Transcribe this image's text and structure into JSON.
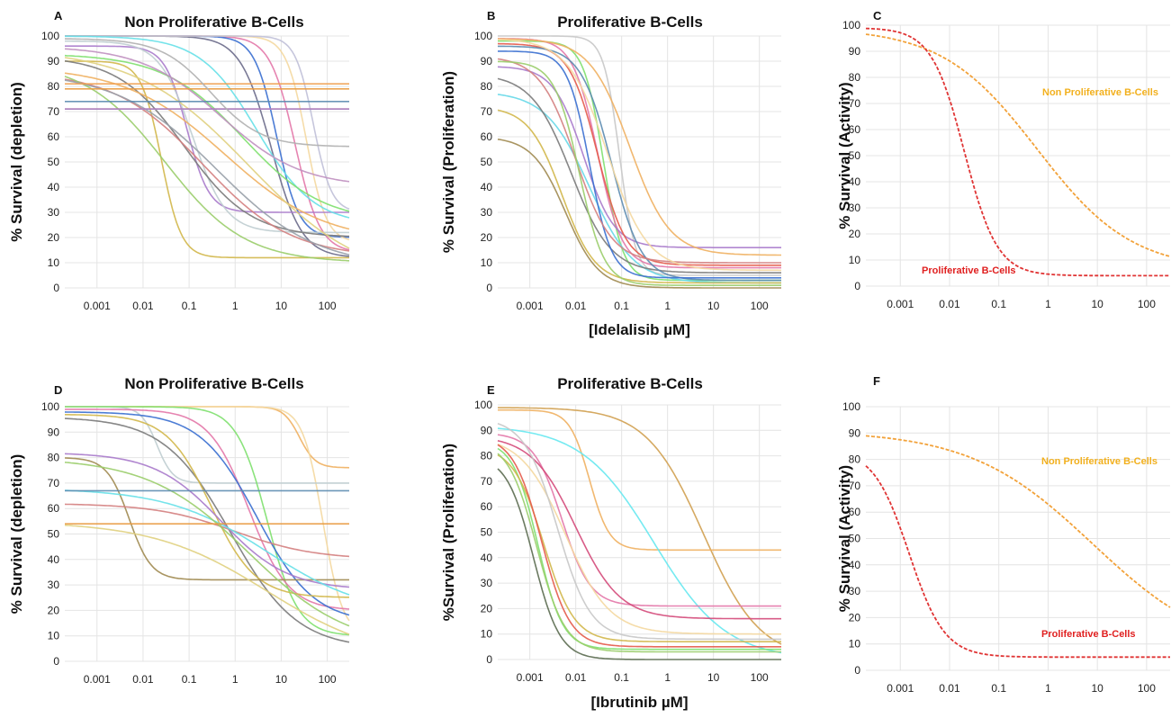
{
  "chart_data": [
    {
      "panel": "A",
      "type": "line",
      "title": "Non Proliferative B-Cells",
      "ylabel": "% Survival (depletion)",
      "xlabel": "",
      "xscale": "log",
      "xlim": [
        0.0002,
        300
      ],
      "ylim": [
        0,
        100
      ],
      "xticks": [
        "0.001",
        "0.01",
        "0.1",
        "1",
        "10",
        "100"
      ],
      "yticks": [
        "0",
        "10",
        "20",
        "30",
        "40",
        "50",
        "60",
        "70",
        "80",
        "90",
        "100"
      ],
      "grid": true,
      "series": [
        {
          "color": "#e377a8",
          "top": 100,
          "bottom": 14,
          "ic50": 20,
          "hill": 1.6
        },
        {
          "color": "#3a6fd0",
          "top": 100,
          "bottom": 20,
          "ic50": 8,
          "hill": 1.8
        },
        {
          "color": "#6a6a8a",
          "top": 100,
          "bottom": 12,
          "ic50": 6,
          "hill": 1.3
        },
        {
          "color": "#f4d8a0",
          "top": 100,
          "bottom": 18,
          "ic50": 35,
          "hill": 2.0
        },
        {
          "color": "#c0c0d8",
          "top": 100,
          "bottom": 30,
          "ic50": 50,
          "hill": 2.2
        },
        {
          "color": "#d2b74a",
          "top": 90,
          "bottom": 12,
          "ic50": 0.025,
          "hill": 2.0
        },
        {
          "color": "#a97acb",
          "top": 96,
          "bottom": 30,
          "ic50": 0.09,
          "hill": 1.8
        },
        {
          "color": "#bfcdd0",
          "top": 98,
          "bottom": 22,
          "ic50": 0.12,
          "hill": 1.2
        },
        {
          "color": "#7a7a7a",
          "top": 92,
          "bottom": 20,
          "ic50": 0.08,
          "hill": 0.6
        },
        {
          "color": "#66e0e8",
          "top": 100,
          "bottom": 25,
          "ic50": 3,
          "hill": 0.7
        },
        {
          "color": "#7ee06e",
          "top": 93,
          "bottom": 26,
          "ic50": 1.5,
          "hill": 0.5
        },
        {
          "color": "#f0b060",
          "top": 88,
          "bottom": 18,
          "ic50": 0.6,
          "hill": 0.4
        },
        {
          "color": "#d47f7f",
          "top": 86,
          "bottom": 12,
          "ic50": 0.2,
          "hill": 0.45
        },
        {
          "color": "#9acd6a",
          "top": 90,
          "bottom": 10,
          "ic50": 0.03,
          "hill": 0.5
        },
        {
          "color": "#e0d080",
          "top": 95,
          "bottom": 2,
          "ic50": 2,
          "hill": 0.35
        },
        {
          "color": "#98a0a8",
          "top": 86,
          "bottom": 8,
          "ic50": 0.4,
          "hill": 0.4
        },
        {
          "color": "#c090c0",
          "top": 96,
          "bottom": 40,
          "ic50": 0.5,
          "hill": 0.5
        },
        {
          "color": "#f0a050",
          "top": 81,
          "bottom": 81,
          "ic50": 1,
          "hill": 1
        },
        {
          "color": "#e89a40",
          "top": 79,
          "bottom": 79,
          "ic50": 1,
          "hill": 1
        },
        {
          "color": "#5b8bb0",
          "top": 74,
          "bottom": 74,
          "ic50": 1,
          "hill": 1
        },
        {
          "color": "#e0457a",
          "top": 71,
          "bottom": 71,
          "ic50": 1,
          "hill": 1
        },
        {
          "color": "#a58cc8",
          "top": 71,
          "bottom": 71,
          "ic50": 1,
          "hill": 1
        },
        {
          "color": "#b0b0b0",
          "top": 99,
          "bottom": 56,
          "ic50": 0.3,
          "hill": 0.8
        }
      ]
    },
    {
      "panel": "B",
      "type": "line",
      "title": "Proliferative B-Cells",
      "ylabel": "% Survival (Proliferation)",
      "xlabel": "[Idelalisib µM]",
      "xscale": "log",
      "xlim": [
        0.0002,
        300
      ],
      "ylim": [
        0,
        100
      ],
      "xticks": [
        "0.001",
        "0.01",
        "0.1",
        "1",
        "10",
        "100"
      ],
      "yticks": [
        "0",
        "10",
        "20",
        "30",
        "40",
        "50",
        "60",
        "70",
        "80",
        "90",
        "100"
      ],
      "grid": true,
      "series": [
        {
          "color": "#c8c8c8",
          "top": 100,
          "bottom": 5,
          "ic50": 0.09,
          "hill": 2.5
        },
        {
          "color": "#7ee06e",
          "top": 98,
          "bottom": 3,
          "ic50": 0.04,
          "hill": 2.0
        },
        {
          "color": "#e377a8",
          "top": 99,
          "bottom": 8,
          "ic50": 0.03,
          "hill": 1.6
        },
        {
          "color": "#66d8e8",
          "top": 78,
          "bottom": 2,
          "ic50": 0.02,
          "hill": 0.9
        },
        {
          "color": "#a97acb",
          "top": 88,
          "bottom": 16,
          "ic50": 0.015,
          "hill": 1.3
        },
        {
          "color": "#7a7a7a",
          "top": 85,
          "bottom": 6,
          "ic50": 0.008,
          "hill": 1.0
        },
        {
          "color": "#d2b74a",
          "top": 72,
          "bottom": 2,
          "ic50": 0.005,
          "hill": 1.2
        },
        {
          "color": "#a08a50",
          "top": 60,
          "bottom": 0,
          "ic50": 0.006,
          "hill": 1.2
        },
        {
          "color": "#f0b060",
          "top": 99,
          "bottom": 13,
          "ic50": 0.15,
          "hill": 1.0
        },
        {
          "color": "#e45a4a",
          "top": 97,
          "bottom": 9,
          "ic50": 0.03,
          "hill": 1.4
        },
        {
          "color": "#5b8bb0",
          "top": 96,
          "bottom": 3,
          "ic50": 0.06,
          "hill": 1.3
        },
        {
          "color": "#3a6fd0",
          "top": 94,
          "bottom": 4,
          "ic50": 0.02,
          "hill": 1.8
        },
        {
          "color": "#d47f7f",
          "top": 92,
          "bottom": 10,
          "ic50": 0.01,
          "hill": 1.1
        },
        {
          "color": "#9acd6a",
          "top": 90,
          "bottom": 1,
          "ic50": 0.012,
          "hill": 1.6
        },
        {
          "color": "#f4d8a0",
          "top": 99,
          "bottom": 7,
          "ic50": 0.05,
          "hill": 1.0
        }
      ]
    },
    {
      "panel": "C",
      "type": "line",
      "title": "",
      "ylabel": "% Survival (Activity)",
      "xlabel": "",
      "xscale": "log",
      "xlim": [
        0.0002,
        300
      ],
      "ylim": [
        0,
        100
      ],
      "xticks": [
        "0.001",
        "0.01",
        "0.1",
        "1",
        "10",
        "100"
      ],
      "yticks": [
        "0",
        "10",
        "20",
        "30",
        "40",
        "50",
        "60",
        "70",
        "80",
        "90",
        "100"
      ],
      "grid": true,
      "annotations": [
        {
          "text": "Non Proliferative B-Cells",
          "color": "#f2b01e"
        },
        {
          "text": "Proliferative B-Cells",
          "color": "#e02020"
        }
      ],
      "series": [
        {
          "name": "Non Proliferative B-Cells",
          "color": "#f2a23a",
          "dashed": true,
          "top": 99,
          "bottom": 6,
          "ic50": 0.6,
          "hill": 0.45
        },
        {
          "name": "Proliferative B-Cells",
          "color": "#e03535",
          "dashed": true,
          "top": 99,
          "bottom": 4,
          "ic50": 0.02,
          "hill": 1.3
        }
      ]
    },
    {
      "panel": "D",
      "type": "line",
      "title": "Non Proliferative B-Cells",
      "ylabel": "% Survival (depletion)",
      "xlabel": "",
      "xscale": "log",
      "xlim": [
        0.0002,
        300
      ],
      "ylim": [
        0,
        100
      ],
      "xticks": [
        "0.001",
        "0.01",
        "0.1",
        "1",
        "10",
        "100"
      ],
      "yticks": [
        "0",
        "10",
        "20",
        "30",
        "40",
        "50",
        "60",
        "70",
        "80",
        "90",
        "100"
      ],
      "grid": true,
      "series": [
        {
          "color": "#f0b060",
          "top": 100,
          "bottom": 76,
          "ic50": 25,
          "hill": 2.5
        },
        {
          "color": "#f4d8a0",
          "top": 100,
          "bottom": 10,
          "ic50": 80,
          "hill": 2.0
        },
        {
          "color": "#bfcdd0",
          "top": 100,
          "bottom": 70,
          "ic50": 0.02,
          "hill": 2.5
        },
        {
          "color": "#7ee06e",
          "top": 100,
          "bottom": 10,
          "ic50": 5,
          "hill": 1.3
        },
        {
          "color": "#e377a8",
          "top": 99,
          "bottom": 20,
          "ic50": 2,
          "hill": 1.0
        },
        {
          "color": "#3a6fd0",
          "top": 98,
          "bottom": 15,
          "ic50": 3,
          "hill": 0.7
        },
        {
          "color": "#7a7a7a",
          "top": 96,
          "bottom": 5,
          "ic50": 0.8,
          "hill": 0.6
        },
        {
          "color": "#d2b74a",
          "top": 97,
          "bottom": 25,
          "ic50": 0.3,
          "hill": 0.9
        },
        {
          "color": "#a08a50",
          "top": 80,
          "bottom": 32,
          "ic50": 0.005,
          "hill": 1.8
        },
        {
          "color": "#a97acb",
          "top": 82,
          "bottom": 28,
          "ic50": 0.5,
          "hill": 0.6
        },
        {
          "color": "#d47f7f",
          "top": 62,
          "bottom": 40,
          "ic50": 1,
          "hill": 0.5
        },
        {
          "color": "#66e0e8",
          "top": 68,
          "bottom": 18,
          "ic50": 5,
          "hill": 0.4
        },
        {
          "color": "#9acd6a",
          "top": 80,
          "bottom": 5,
          "ic50": 2,
          "hill": 0.4
        },
        {
          "color": "#e0d080",
          "top": 55,
          "bottom": 0,
          "ic50": 5,
          "hill": 0.35
        },
        {
          "color": "#5b8bb0",
          "top": 67,
          "bottom": 67,
          "ic50": 1,
          "hill": 1
        },
        {
          "color": "#e89a40",
          "top": 54,
          "bottom": 54,
          "ic50": 1,
          "hill": 1
        }
      ]
    },
    {
      "panel": "E",
      "type": "line",
      "title": "Proliferative B-Cells",
      "ylabel": "%Survival (Proliferation)",
      "xlabel": "[Ibrutinib µM]",
      "xscale": "log",
      "xlim": [
        0.0002,
        300
      ],
      "ylim": [
        0,
        100
      ],
      "xticks": [
        "0.001",
        "0.01",
        "0.1",
        "1",
        "10",
        "100"
      ],
      "yticks": [
        "0",
        "10",
        "20",
        "30",
        "40",
        "50",
        "60",
        "70",
        "80",
        "90",
        "100"
      ],
      "grid": true,
      "series": [
        {
          "color": "#d0a050",
          "top": 99,
          "bottom": 0,
          "ic50": 6,
          "hill": 0.7
        },
        {
          "color": "#f0b060",
          "top": 98,
          "bottom": 43,
          "ic50": 0.02,
          "hill": 2.0
        },
        {
          "color": "#66e8f0",
          "top": 92,
          "bottom": 0,
          "ic50": 0.5,
          "hill": 0.55
        },
        {
          "color": "#e377a8",
          "top": 89,
          "bottom": 21,
          "ic50": 0.005,
          "hill": 1.4
        },
        {
          "color": "#d44a7a",
          "top": 88,
          "bottom": 16,
          "ic50": 0.01,
          "hill": 0.9
        },
        {
          "color": "#f4d8a0",
          "top": 88,
          "bottom": 10,
          "ic50": 0.006,
          "hill": 0.9
        },
        {
          "color": "#7ee06e",
          "top": 86,
          "bottom": 4,
          "ic50": 0.0015,
          "hill": 1.6
        },
        {
          "color": "#d2b74a",
          "top": 84,
          "bottom": 7,
          "ic50": 0.002,
          "hill": 1.3
        },
        {
          "color": "#5b6b50",
          "top": 80,
          "bottom": 0,
          "ic50": 0.0012,
          "hill": 1.5
        },
        {
          "color": "#e45a4a",
          "top": 88,
          "bottom": 5,
          "ic50": 0.0018,
          "hill": 1.4
        },
        {
          "color": "#c8c8c8",
          "top": 95,
          "bottom": 8,
          "ic50": 0.004,
          "hill": 1.2
        },
        {
          "color": "#9acd6a",
          "top": 86,
          "bottom": 3,
          "ic50": 0.0014,
          "hill": 1.4
        }
      ]
    },
    {
      "panel": "F",
      "type": "line",
      "title": "",
      "ylabel": "% Survival (Activity)",
      "xlabel": "",
      "xscale": "log",
      "xlim": [
        0.0002,
        300
      ],
      "ylim": [
        0,
        100
      ],
      "xticks": [
        "0.001",
        "0.01",
        "0.1",
        "1",
        "10",
        "100"
      ],
      "yticks": [
        "0",
        "10",
        "20",
        "30",
        "40",
        "50",
        "60",
        "70",
        "80",
        "90",
        "100"
      ],
      "grid": true,
      "annotations": [
        {
          "text": "Non Proliferative B-Cells",
          "color": "#f2b01e"
        },
        {
          "text": "Proliferative B-Cells",
          "color": "#e02020"
        }
      ],
      "series": [
        {
          "name": "Non Proliferative B-Cells",
          "color": "#f2a23a",
          "dashed": true,
          "top": 91,
          "bottom": 5,
          "ic50": 8,
          "hill": 0.35
        },
        {
          "name": "Proliferative B-Cells",
          "color": "#e03535",
          "dashed": true,
          "top": 84,
          "bottom": 5,
          "ic50": 0.0015,
          "hill": 1.2
        }
      ]
    }
  ]
}
